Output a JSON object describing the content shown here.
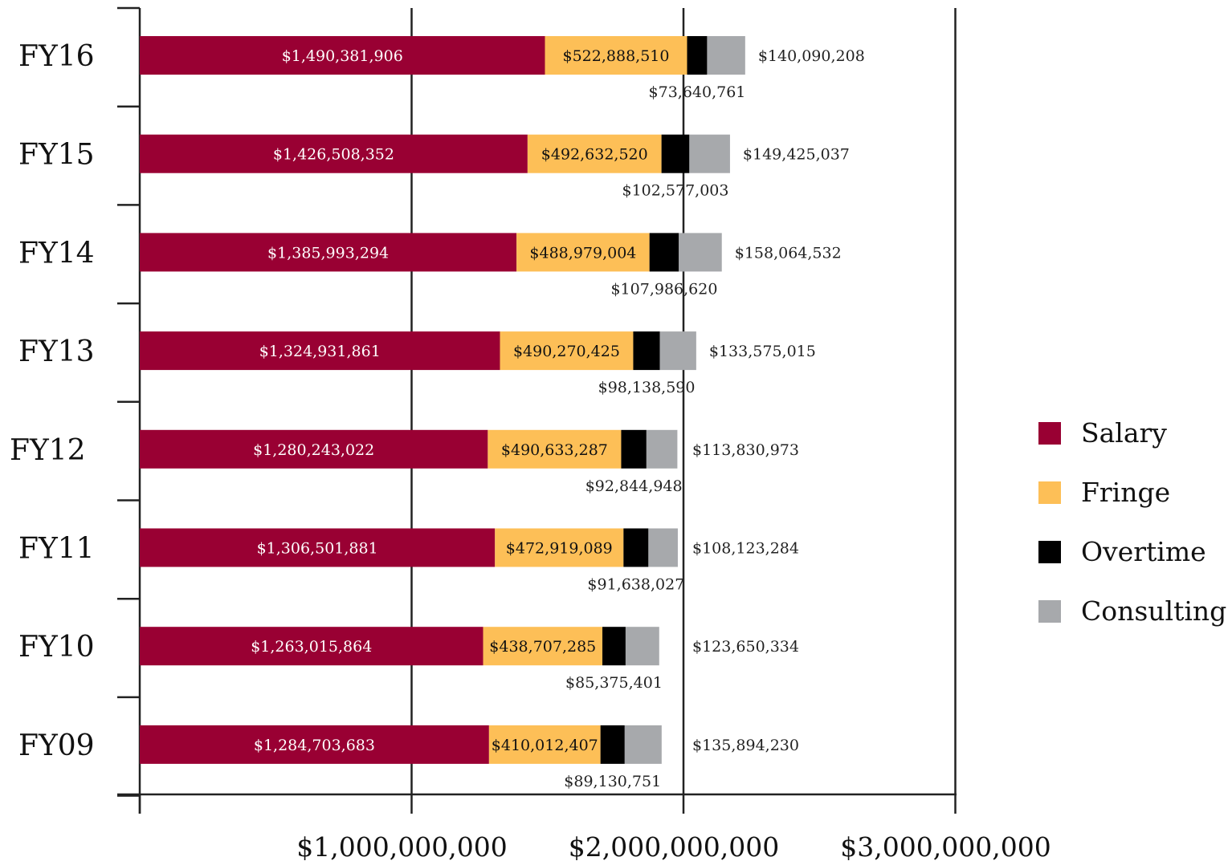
{
  "chart_data": {
    "type": "bar",
    "orientation": "horizontal",
    "stacked": true,
    "title": "",
    "xlabel": "",
    "ylabel": "",
    "xlim": [
      0,
      3000000000
    ],
    "x_ticks": [
      0,
      1000000000,
      2000000000,
      3000000000
    ],
    "x_tick_labels": [
      "",
      "$1,000,000,000",
      "$2,000,000,000",
      "$3,000,000,000"
    ],
    "grid": "vertical",
    "legend_position": "right",
    "categories": [
      "FY16",
      "FY15",
      "FY14",
      "FY13",
      "FY12",
      "FY11",
      "FY10",
      "FY09"
    ],
    "series": [
      {
        "name": "Salary",
        "color": "#990033",
        "values": [
          1490381906,
          1426508352,
          1385993294,
          1324931861,
          1280243022,
          1306501881,
          1263015864,
          1284703683
        ],
        "labels": [
          "$1,490,381,906",
          "$1,426,508,352",
          "$1,385,993,294",
          "$1,324,931,861",
          "$1,280,243,022",
          "$1,306,501,881",
          "$1,263,015,864",
          "$1,284,703,683"
        ]
      },
      {
        "name": "Fringe",
        "color": "#FDBF57",
        "values": [
          522888510,
          492632520,
          488979004,
          490270425,
          490633287,
          472919089,
          438707285,
          410012407
        ],
        "labels": [
          "$522,888,510",
          "$492,632,520",
          "$488,979,004",
          "$490,270,425",
          "$490,633,287",
          "$472,919,089",
          "$438,707,285",
          "$410,012,407"
        ]
      },
      {
        "name": "Overtime",
        "color": "#000000",
        "values": [
          73640761,
          102577003,
          107986620,
          98138590,
          92844948,
          91638027,
          85375401,
          89130751
        ],
        "labels": [
          "$73,640,761",
          "$102,577,003",
          "$107,986,620",
          "$98,138,590",
          "$92,844,948",
          "$91,638,027",
          "$85,375,401",
          "$89,130,751"
        ]
      },
      {
        "name": "Consulting",
        "color": "#A7A9AC",
        "values": [
          140090208,
          149425037,
          158064532,
          133575015,
          113830973,
          108123284,
          123650334,
          135894230
        ],
        "labels": [
          "$140,090,208",
          "$149,425,037",
          "$158,064,532",
          "$133,575,015",
          "$113,830,973",
          "$108,123,284",
          "$123,650,334",
          "$135,894,230"
        ]
      }
    ]
  }
}
